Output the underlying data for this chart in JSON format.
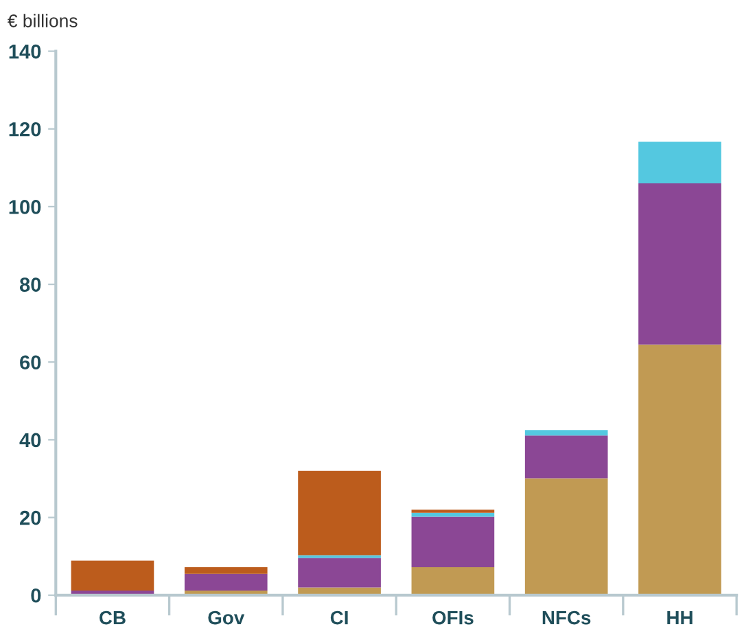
{
  "chart_data": {
    "type": "bar",
    "stacked": true,
    "ylabel": "€ billions",
    "categories": [
      "CB",
      "Gov",
      "CI",
      "OFIs",
      "NFCs",
      "HH"
    ],
    "series": [
      {
        "color": "#c19a53",
        "values": [
          0.3,
          1.2,
          2.0,
          7.2,
          30.1,
          64.5
        ]
      },
      {
        "color": "#8b4795",
        "values": [
          0.9,
          4.3,
          7.6,
          13.0,
          11.0,
          41.5
        ]
      },
      {
        "color": "#54c8e0",
        "values": [
          0,
          0,
          0.7,
          1.0,
          1.4,
          10.7
        ]
      },
      {
        "color": "#bc5c1c",
        "values": [
          7.7,
          1.7,
          21.7,
          0.8,
          0,
          0
        ]
      }
    ],
    "ylim": [
      0,
      140
    ],
    "yticks": [
      0,
      20,
      40,
      60,
      80,
      100,
      120,
      140
    ],
    "grid": false,
    "legend": false
  }
}
